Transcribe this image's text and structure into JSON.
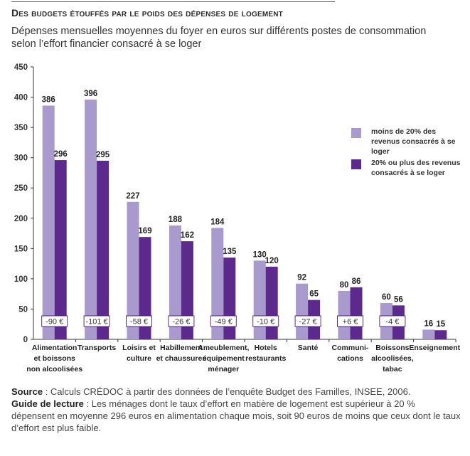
{
  "header": {
    "title": "Des budgets étouffés par le poids des dépenses de logement",
    "subtitle": "Dépenses mensuelles moyennes du foyer en euros sur différents postes de consommation selon l’effort financier consacré à se loger"
  },
  "chart_data": {
    "type": "bar",
    "title": "Des budgets étouffés par le poids des dépenses de logement",
    "subtitle": "Dépenses mensuelles moyennes du foyer en euros sur différents postes de consommation selon l’effort financier consacré à se loger",
    "categories": [
      [
        "Alimentation",
        "et boissons",
        "non alcoolisées"
      ],
      [
        "Transports"
      ],
      [
        "Loisirs et",
        "culture"
      ],
      [
        "Habillement",
        "et chaussures"
      ],
      [
        "Ameublement,",
        "équipement",
        "ménager"
      ],
      [
        "Hotels",
        "restaurants"
      ],
      [
        "Santé"
      ],
      [
        "Communi-",
        "cations"
      ],
      [
        "Boissons",
        "alcoolisées,",
        "tabac"
      ],
      [
        "Enseignement"
      ]
    ],
    "series": [
      {
        "name": "moins de 20% des revenus consacrés à se loger",
        "color": "#a99acd",
        "values": [
          386,
          396,
          227,
          188,
          184,
          130,
          92,
          80,
          60,
          16
        ]
      },
      {
        "name": "20% ou plus des revenus consacrés à se loger",
        "color": "#5c2a8c",
        "values": [
          296,
          295,
          169,
          162,
          135,
          120,
          65,
          86,
          56,
          15
        ]
      }
    ],
    "differences": [
      "-90 €",
      "-101 €",
      "-58 €",
      "-26 €",
      "-49 €",
      "-10 €",
      "-27 €",
      "+6 €",
      "-4 €",
      ""
    ],
    "ylim": [
      0,
      450
    ],
    "yticks": [
      0,
      50,
      100,
      150,
      200,
      250,
      300,
      350,
      400,
      450
    ],
    "xlabel": "",
    "ylabel": "",
    "grid": false,
    "legend_position": "right"
  },
  "footer": {
    "source_label": "Source",
    "source_text": " : Calculs CRÉDOC à partir des données de l’enquête Budget des Familles, INSEE, 2006.",
    "guide_label": "Guide de lecture",
    "guide_text": " : Les ménages dont le taux d’effort en matière de logement est supérieur à 20 % dépensent en moyenne 296 euros en alimentation chaque mois, soit 90 euros de moins que ceux dont le taux d’effort est plus faible."
  }
}
